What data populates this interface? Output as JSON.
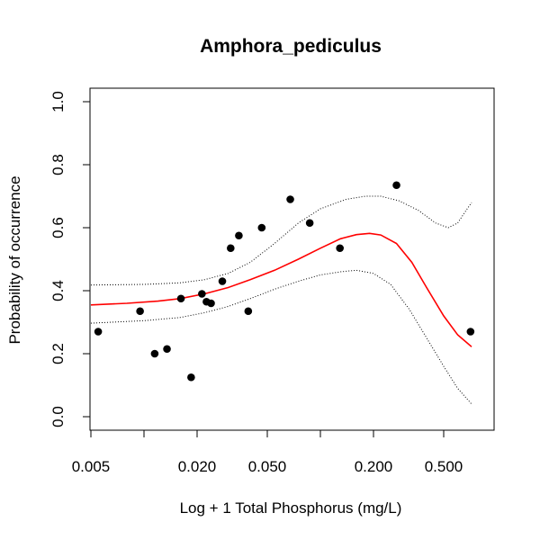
{
  "chart_data": {
    "type": "scatter",
    "title": "Amphora_pediculus",
    "xlabel": "Log + 1 Total Phosphorus (mg/L)",
    "ylabel": "Probability of occurrence",
    "x_scale": "log",
    "xlim": [
      0.005,
      0.8
    ],
    "ylim": [
      0.0,
      1.0
    ],
    "x_ticks": [
      {
        "value": 0.005,
        "label": "0.005"
      },
      {
        "value": 0.02,
        "label": "0.020"
      },
      {
        "value": 0.05,
        "label": "0.050"
      },
      {
        "value": 0.2,
        "label": "0.200"
      },
      {
        "value": 0.5,
        "label": "0.500"
      }
    ],
    "x_minor_ticks": [
      0.01,
      0.1
    ],
    "y_ticks": [
      {
        "value": 0.0,
        "label": "0.0"
      },
      {
        "value": 0.2,
        "label": "0.2"
      },
      {
        "value": 0.4,
        "label": "0.4"
      },
      {
        "value": 0.6,
        "label": "0.6"
      },
      {
        "value": 0.8,
        "label": "0.8"
      },
      {
        "value": 1.0,
        "label": "1.0"
      }
    ],
    "grid": false,
    "colors": {
      "points": "#000000",
      "fit": "#ff0000",
      "ci": "#000000"
    },
    "points": [
      {
        "x": 0.0055,
        "y": 0.27
      },
      {
        "x": 0.0095,
        "y": 0.335
      },
      {
        "x": 0.0115,
        "y": 0.2
      },
      {
        "x": 0.0135,
        "y": 0.215
      },
      {
        "x": 0.0162,
        "y": 0.375
      },
      {
        "x": 0.0185,
        "y": 0.125
      },
      {
        "x": 0.0213,
        "y": 0.39
      },
      {
        "x": 0.0226,
        "y": 0.365
      },
      {
        "x": 0.024,
        "y": 0.36
      },
      {
        "x": 0.0278,
        "y": 0.43
      },
      {
        "x": 0.031,
        "y": 0.535
      },
      {
        "x": 0.0345,
        "y": 0.575
      },
      {
        "x": 0.039,
        "y": 0.335
      },
      {
        "x": 0.0465,
        "y": 0.6
      },
      {
        "x": 0.0675,
        "y": 0.69
      },
      {
        "x": 0.087,
        "y": 0.615
      },
      {
        "x": 0.129,
        "y": 0.535
      },
      {
        "x": 0.27,
        "y": 0.735
      },
      {
        "x": 0.71,
        "y": 0.27
      }
    ],
    "series": [
      {
        "role": "fit",
        "style": "solid",
        "values": [
          {
            "x": 0.005,
            "y": 0.355
          },
          {
            "x": 0.008,
            "y": 0.36
          },
          {
            "x": 0.012,
            "y": 0.367
          },
          {
            "x": 0.016,
            "y": 0.375
          },
          {
            "x": 0.022,
            "y": 0.39
          },
          {
            "x": 0.03,
            "y": 0.41
          },
          {
            "x": 0.04,
            "y": 0.435
          },
          {
            "x": 0.055,
            "y": 0.465
          },
          {
            "x": 0.075,
            "y": 0.5
          },
          {
            "x": 0.1,
            "y": 0.535
          },
          {
            "x": 0.13,
            "y": 0.565
          },
          {
            "x": 0.16,
            "y": 0.578
          },
          {
            "x": 0.19,
            "y": 0.582
          },
          {
            "x": 0.22,
            "y": 0.577
          },
          {
            "x": 0.27,
            "y": 0.55
          },
          {
            "x": 0.33,
            "y": 0.49
          },
          {
            "x": 0.4,
            "y": 0.41
          },
          {
            "x": 0.5,
            "y": 0.32
          },
          {
            "x": 0.6,
            "y": 0.26
          },
          {
            "x": 0.72,
            "y": 0.222
          }
        ]
      },
      {
        "role": "ci-upper",
        "style": "dotted",
        "values": [
          {
            "x": 0.005,
            "y": 0.418
          },
          {
            "x": 0.01,
            "y": 0.42
          },
          {
            "x": 0.016,
            "y": 0.425
          },
          {
            "x": 0.022,
            "y": 0.435
          },
          {
            "x": 0.03,
            "y": 0.455
          },
          {
            "x": 0.04,
            "y": 0.49
          },
          {
            "x": 0.055,
            "y": 0.55
          },
          {
            "x": 0.075,
            "y": 0.615
          },
          {
            "x": 0.1,
            "y": 0.66
          },
          {
            "x": 0.14,
            "y": 0.69
          },
          {
            "x": 0.18,
            "y": 0.7
          },
          {
            "x": 0.22,
            "y": 0.7
          },
          {
            "x": 0.28,
            "y": 0.685
          },
          {
            "x": 0.36,
            "y": 0.655
          },
          {
            "x": 0.45,
            "y": 0.615
          },
          {
            "x": 0.53,
            "y": 0.6
          },
          {
            "x": 0.6,
            "y": 0.615
          },
          {
            "x": 0.67,
            "y": 0.655
          },
          {
            "x": 0.72,
            "y": 0.68
          }
        ]
      },
      {
        "role": "ci-lower",
        "style": "dotted",
        "values": [
          {
            "x": 0.005,
            "y": 0.297
          },
          {
            "x": 0.01,
            "y": 0.305
          },
          {
            "x": 0.016,
            "y": 0.315
          },
          {
            "x": 0.022,
            "y": 0.33
          },
          {
            "x": 0.03,
            "y": 0.35
          },
          {
            "x": 0.04,
            "y": 0.375
          },
          {
            "x": 0.055,
            "y": 0.405
          },
          {
            "x": 0.075,
            "y": 0.43
          },
          {
            "x": 0.1,
            "y": 0.45
          },
          {
            "x": 0.13,
            "y": 0.46
          },
          {
            "x": 0.16,
            "y": 0.465
          },
          {
            "x": 0.2,
            "y": 0.455
          },
          {
            "x": 0.25,
            "y": 0.42
          },
          {
            "x": 0.32,
            "y": 0.34
          },
          {
            "x": 0.4,
            "y": 0.25
          },
          {
            "x": 0.5,
            "y": 0.16
          },
          {
            "x": 0.6,
            "y": 0.09
          },
          {
            "x": 0.72,
            "y": 0.04
          }
        ]
      }
    ]
  }
}
